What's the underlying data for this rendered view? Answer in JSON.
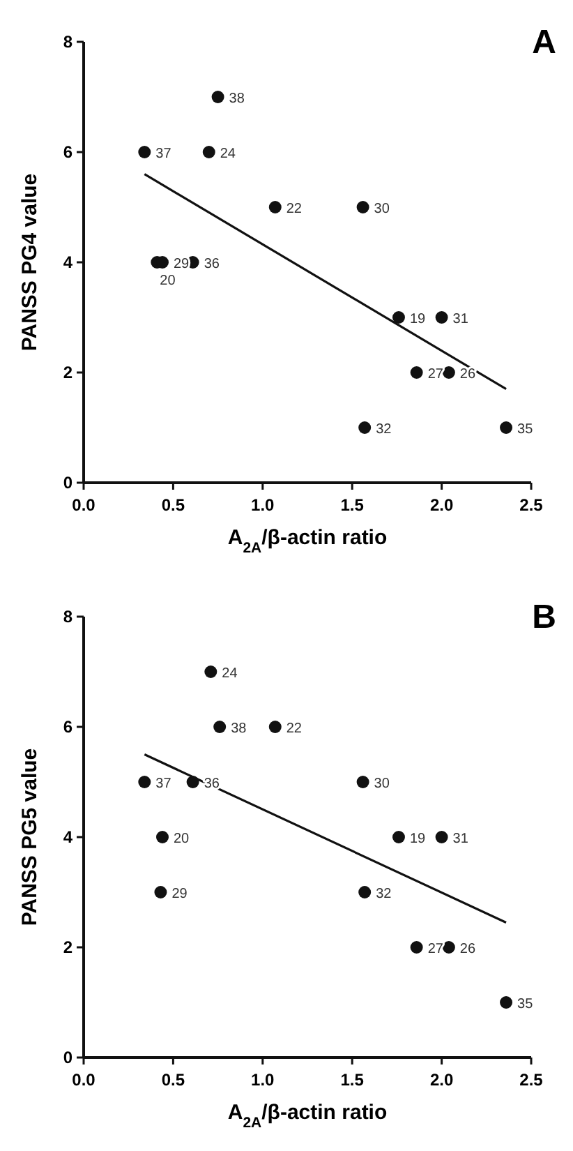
{
  "chart_data": [
    {
      "type": "scatter",
      "title": "A",
      "xlabel": "A$_{2A}$/β-actin ratio",
      "ylabel": "PANSS PG4 value",
      "xlim": [
        0,
        2.5
      ],
      "xticks": [
        {
          "value": 0,
          "label": "0.0"
        },
        {
          "value": 0.5,
          "label": "0.5"
        },
        {
          "value": 1,
          "label": "1.0"
        },
        {
          "value": 1.5,
          "label": "1.5"
        },
        {
          "value": 2,
          "label": "2.0"
        },
        {
          "value": 2.5,
          "label": "2.5"
        }
      ],
      "ylim": [
        0,
        8
      ],
      "yticks": [
        0,
        2,
        4,
        6,
        8
      ],
      "series": [
        {
          "marker": "circle",
          "color": "#111111",
          "x": [
            0.34,
            0.7,
            0.75,
            1.07,
            1.56,
            0.41,
            0.44,
            0.61,
            1.76,
            2.0,
            1.86,
            2.04,
            1.57,
            2.36
          ],
          "values": [
            6,
            6,
            7,
            5,
            5,
            4,
            4,
            4,
            3,
            3,
            2,
            2,
            1,
            1
          ]
        },
        {
          "type": "line",
          "color": "#111111",
          "x": [
            0.34,
            2.36
          ],
          "values": [
            5.6,
            1.7
          ]
        }
      ],
      "annotations": [
        {
          "text": "37",
          "x": 0.34,
          "y": 6
        },
        {
          "text": "24",
          "x": 0.7,
          "y": 6
        },
        {
          "text": "38",
          "x": 0.75,
          "y": 7
        },
        {
          "text": "22",
          "x": 1.07,
          "y": 5
        },
        {
          "text": "30",
          "x": 1.56,
          "y": 5
        },
        {
          "text": "20",
          "x": 0.41,
          "y": 4
        },
        {
          "text": "29",
          "x": 0.44,
          "y": 4
        },
        {
          "text": "36",
          "x": 0.61,
          "y": 4
        },
        {
          "text": "19",
          "x": 1.76,
          "y": 3
        },
        {
          "text": "31",
          "x": 2.0,
          "y": 3
        },
        {
          "text": "27",
          "x": 1.86,
          "y": 2
        },
        {
          "text": "26",
          "x": 2.04,
          "y": 2
        },
        {
          "text": "32",
          "x": 1.57,
          "y": 1
        },
        {
          "text": "35",
          "x": 2.36,
          "y": 1
        }
      ]
    },
    {
      "type": "scatter",
      "title": "B",
      "xlabel": "A$_{2A}$/β-actin ratio",
      "ylabel": "PANSS PG5 value",
      "xlim": [
        0,
        2.5
      ],
      "xticks": [
        {
          "value": 0,
          "label": "0.0"
        },
        {
          "value": 0.5,
          "label": "0.5"
        },
        {
          "value": 1,
          "label": "1.0"
        },
        {
          "value": 1.5,
          "label": "1.5"
        },
        {
          "value": 2,
          "label": "2.0"
        },
        {
          "value": 2.5,
          "label": "2.5"
        }
      ],
      "ylim": [
        0,
        8
      ],
      "yticks": [
        0,
        2,
        4,
        6,
        8
      ],
      "series": [
        {
          "marker": "circle",
          "color": "#111111",
          "x": [
            0.71,
            0.76,
            1.07,
            0.34,
            0.61,
            1.56,
            0.44,
            0.43,
            1.76,
            2.0,
            1.57,
            1.86,
            2.04,
            2.36
          ],
          "values": [
            7,
            6,
            6,
            5,
            5,
            5,
            4,
            3,
            4,
            4,
            3,
            2,
            2,
            1
          ]
        },
        {
          "type": "line",
          "color": "#111111",
          "x": [
            0.34,
            2.36
          ],
          "values": [
            5.5,
            2.45
          ]
        }
      ],
      "annotations": [
        {
          "text": "24",
          "x": 0.71,
          "y": 7
        },
        {
          "text": "38",
          "x": 0.76,
          "y": 6
        },
        {
          "text": "22",
          "x": 1.07,
          "y": 6
        },
        {
          "text": "37",
          "x": 0.34,
          "y": 5
        },
        {
          "text": "36",
          "x": 0.61,
          "y": 5
        },
        {
          "text": "30",
          "x": 1.56,
          "y": 5
        },
        {
          "text": "20",
          "x": 0.44,
          "y": 4
        },
        {
          "text": "29",
          "x": 0.43,
          "y": 3
        },
        {
          "text": "19",
          "x": 1.76,
          "y": 4
        },
        {
          "text": "31",
          "x": 2.0,
          "y": 4
        },
        {
          "text": "32",
          "x": 1.57,
          "y": 3
        },
        {
          "text": "27",
          "x": 1.86,
          "y": 2
        },
        {
          "text": "26",
          "x": 2.04,
          "y": 2
        },
        {
          "text": "35",
          "x": 2.36,
          "y": 1
        }
      ]
    }
  ]
}
